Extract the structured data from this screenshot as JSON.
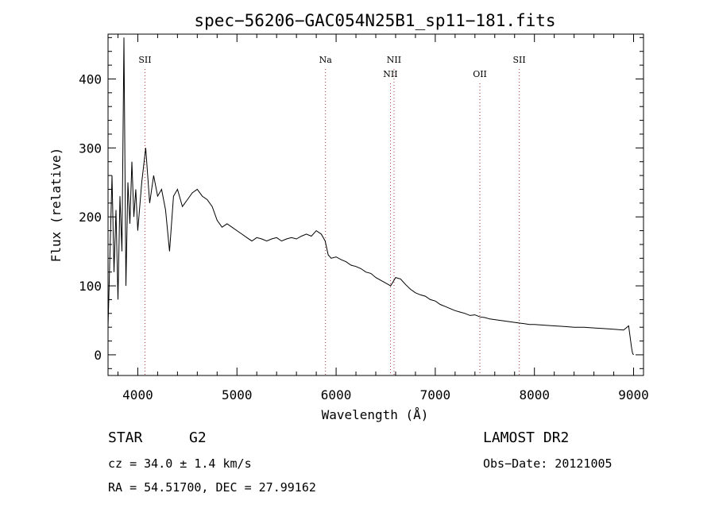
{
  "chart_data": {
    "type": "line",
    "title": "spec−56206−GAC054N25B1_sp11−181.fits",
    "xlabel": "Wavelength (Å)",
    "ylabel": "Flux (relative)",
    "xlim": [
      3700,
      9100
    ],
    "ylim": [
      -30,
      465
    ],
    "xticks": [
      4000,
      5000,
      6000,
      7000,
      8000,
      9000
    ],
    "yticks": [
      0,
      100,
      200,
      300,
      400
    ],
    "grid": false,
    "series": [
      {
        "x": [
          3700,
          3720,
          3740,
          3760,
          3780,
          3800,
          3820,
          3840,
          3860,
          3880,
          3900,
          3920,
          3940,
          3960,
          3980,
          4000,
          4040,
          4080,
          4120,
          4160,
          4200,
          4240,
          4280,
          4320,
          4360,
          4400,
          4450,
          4500,
          4550,
          4600,
          4650,
          4700,
          4750,
          4800,
          4850,
          4900,
          4950,
          5000,
          5050,
          5100,
          5150,
          5200,
          5250,
          5300,
          5350,
          5400,
          5450,
          5500,
          5550,
          5600,
          5650,
          5700,
          5750,
          5800,
          5850,
          5890,
          5920,
          5950,
          6000,
          6050,
          6100,
          6150,
          6200,
          6250,
          6300,
          6350,
          6400,
          6450,
          6500,
          6550,
          6600,
          6650,
          6700,
          6750,
          6800,
          6850,
          6900,
          6950,
          7000,
          7050,
          7100,
          7150,
          7200,
          7250,
          7300,
          7350,
          7400,
          7450,
          7500,
          7550,
          7600,
          7650,
          7700,
          7750,
          7800,
          7850,
          7900,
          7950,
          8000,
          8100,
          8200,
          8300,
          8400,
          8500,
          8600,
          8700,
          8800,
          8900,
          8950,
          8980,
          8990,
          9000
        ],
        "y": [
          40,
          150,
          260,
          120,
          210,
          80,
          230,
          150,
          460,
          100,
          250,
          190,
          280,
          200,
          240,
          180,
          250,
          300,
          220,
          260,
          230,
          240,
          210,
          150,
          230,
          240,
          215,
          225,
          235,
          240,
          230,
          225,
          215,
          195,
          185,
          190,
          185,
          180,
          175,
          170,
          165,
          170,
          168,
          165,
          168,
          170,
          165,
          168,
          170,
          168,
          172,
          175,
          172,
          180,
          175,
          165,
          145,
          140,
          142,
          138,
          135,
          130,
          128,
          125,
          120,
          118,
          112,
          108,
          104,
          100,
          112,
          110,
          102,
          95,
          90,
          87,
          85,
          80,
          78,
          73,
          70,
          67,
          64,
          62,
          60,
          57,
          58,
          55,
          54,
          52,
          51,
          50,
          49,
          48,
          47,
          46,
          45,
          44,
          44,
          43,
          42,
          41,
          40,
          40,
          39,
          38,
          37,
          36,
          42,
          10,
          2,
          0
        ]
      }
    ],
    "lines": [
      {
        "label": "SII",
        "x": 4072,
        "row": 0
      },
      {
        "label": "Na",
        "x": 5893,
        "row": 0
      },
      {
        "label": "NII",
        "x": 6548,
        "row": 1
      },
      {
        "label": "NII",
        "x": 6584,
        "row": 0
      },
      {
        "label": "OII",
        "x": 7450,
        "row": 1
      },
      {
        "label": "SII",
        "x": 7847,
        "row": 0
      }
    ],
    "line_color": "#b03030"
  },
  "info": {
    "object": "STAR",
    "subclass": "G2",
    "cz": "cz = 34.0 ± 1.4 km/s",
    "coords": "RA =  54.51700, DEC =  27.99162",
    "survey": "LAMOST DR2",
    "obsdate": "Obs−Date: 20121005"
  }
}
